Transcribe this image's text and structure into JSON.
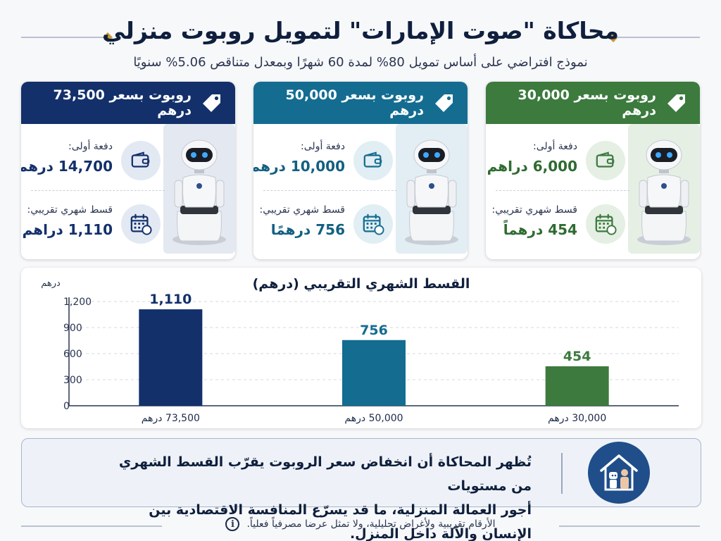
{
  "title": "محاكاة \"صوت الإمارات\" لتمويل روبوت منزلي",
  "subtitle": "نموذج افتراضي على أساس تمويل 80% لمدة 60 شهرًا وبمعدل متناقص 5.06% سنويًا",
  "cards": [
    {
      "header": "روبوت بسعر 30,000 درهم",
      "color": "#3c7a3e",
      "value_color": "#2f6b31",
      "icon_bg": "#e5efe4",
      "panel_bg": "#e6efe4",
      "down_label": "دفعة أولى:",
      "down_value": "6,000 دراهم",
      "monthly_label": "قسط شهري تقريبي:",
      "monthly_value": "454 درهماً"
    },
    {
      "header": "روبوت بسعر 50,000 درهم",
      "color": "#146c91",
      "value_color": "#135f82",
      "icon_bg": "#e1eef4",
      "panel_bg": "#e2eef4",
      "down_label": "دفعة أولى:",
      "down_value": "10,000 درهم",
      "monthly_label": "قسط شهري تقريبي:",
      "monthly_value": "756 درهمًا"
    },
    {
      "header": "روبوت بسعر 73,500 درهم",
      "color": "#13306b",
      "value_color": "#13306b",
      "icon_bg": "#e3e9f3",
      "panel_bg": "#e3e8f1",
      "down_label": "دفعة أولى:",
      "down_value": "14,700 درهم",
      "monthly_label": "قسط شهري تقريبي:",
      "monthly_value": "1,110 دراهم"
    }
  ],
  "chart_data": {
    "type": "bar",
    "title": "القسط الشهري التقريبي (درهم)",
    "ylabel": "درهم",
    "ylim": [
      0,
      1200
    ],
    "yticks": [
      0,
      300,
      600,
      900,
      1200
    ],
    "ytick_labels": [
      "0",
      "300",
      "600",
      "900",
      "1,200"
    ],
    "categories": [
      "73,500 درهم",
      "50,000 درهم",
      "30,000 درهم"
    ],
    "values": [
      1110,
      756,
      454
    ],
    "value_labels": [
      "1,110",
      "756",
      "454"
    ],
    "colors": [
      "#13306b",
      "#146c91",
      "#3c7a3e"
    ],
    "grid": true
  },
  "note": {
    "line1": "تُظهر المحاكاة أن انخفاض سعر الروبوت يقرّب القسط الشهري من مستويات",
    "line2": "أجور العمالة المنزلية، ما قد يسرّع المنافسة الاقتصادية بين الإنسان والآلة داخل المنزل."
  },
  "disclaimer": "الأرقام تقريبية ولأغراض تحليلية، ولا تمثل عرضا مصرفياً فعلياً.",
  "icons": {
    "tag": "price-tag-icon",
    "wallet": "wallet-icon",
    "calendar": "calendar-icon",
    "info": "info-icon",
    "house": "house-icon",
    "robot": "robot-icon"
  }
}
